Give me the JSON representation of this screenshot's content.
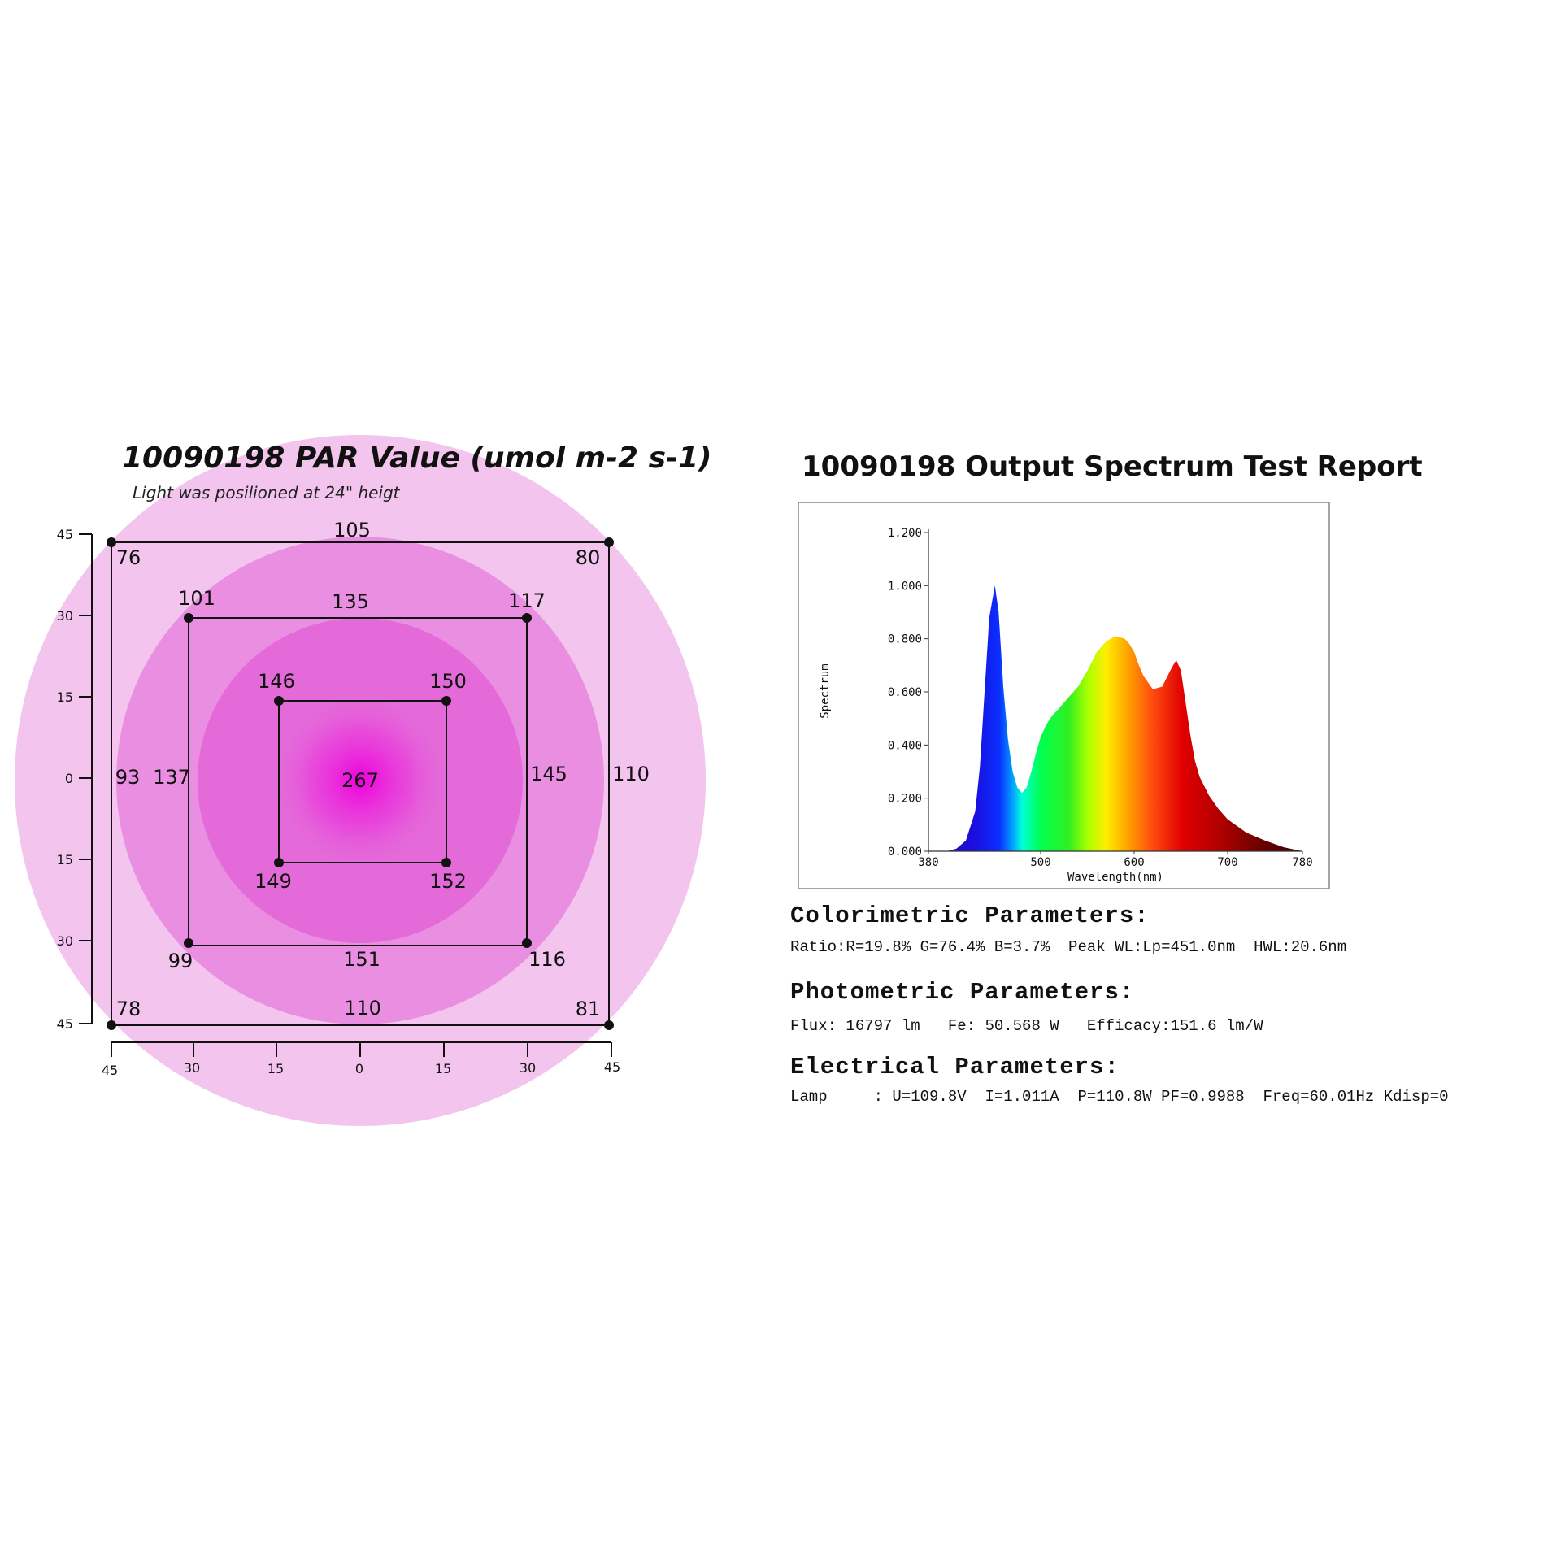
{
  "par_map": {
    "title": "10090198 PAR Value (umol m-2 s-1)",
    "subtitle": "Light was posilioned at 24\" heigt",
    "left_axis_ticks": [
      "45",
      "30",
      "15",
      "0",
      "15",
      "30",
      "45"
    ],
    "bottom_axis_ticks": [
      "45",
      "30",
      "15",
      "0",
      "15",
      "30",
      "45"
    ],
    "center_value": "267",
    "inner_square": {
      "corners": [
        "146",
        "150",
        "149",
        "152"
      ]
    },
    "middle_square": {
      "corners": [
        "101",
        "117",
        "99",
        "116"
      ],
      "top": "135",
      "bottom": "151",
      "left": "137",
      "right": "145"
    },
    "outer_square": {
      "corners": [
        "76",
        "80",
        "78",
        "81"
      ],
      "top": "105",
      "bottom": "110",
      "left": "93",
      "right": "110"
    },
    "colors": {
      "outer": "#f2c4ee",
      "middle": "#e98ee0",
      "inner": "#e46ad9",
      "center": "#ee00dd"
    }
  },
  "spectrum": {
    "title": "10090198 Output Spectrum Test Report",
    "colorimetric_header": "Colorimetric Parameters:",
    "colorimetric_line": "Ratio:R=19.8% G=76.4% B=3.7%  Peak WL:Lp=451.0nm  HWL:20.6nm",
    "photometric_header": "Photometric Parameters:",
    "photometric_line": "Flux: 16797 lm   Fe: 50.568 W   Efficacy:151.6 lm/W",
    "electrical_header": "Electrical Parameters:",
    "electrical_line": "Lamp     : U=109.8V  I=1.011A  P=110.8W PF=0.9988  Freq=60.01Hz Kdisp=0"
  },
  "chart_data": [
    {
      "type": "heatmap",
      "title": "10090198 PAR Value (umol m-2 s-1)",
      "subtitle": "Light was posilioned at 24\" heigt",
      "x_ticks": [
        45,
        30,
        15,
        0,
        15,
        30,
        45
      ],
      "y_ticks": [
        45,
        30,
        15,
        0,
        15,
        30,
        45
      ],
      "points": [
        {
          "x": -45,
          "y": 45,
          "value": 76
        },
        {
          "x": 0,
          "y": 45,
          "value": 105
        },
        {
          "x": 45,
          "y": 45,
          "value": 80
        },
        {
          "x": -30,
          "y": 30,
          "value": 101
        },
        {
          "x": 0,
          "y": 30,
          "value": 135
        },
        {
          "x": 30,
          "y": 30,
          "value": 117
        },
        {
          "x": -15,
          "y": 15,
          "value": 146
        },
        {
          "x": 15,
          "y": 15,
          "value": 150
        },
        {
          "x": -45,
          "y": 0,
          "value": 93
        },
        {
          "x": -30,
          "y": 0,
          "value": 137
        },
        {
          "x": 0,
          "y": 0,
          "value": 267
        },
        {
          "x": 30,
          "y": 0,
          "value": 145
        },
        {
          "x": 45,
          "y": 0,
          "value": 110
        },
        {
          "x": -15,
          "y": -15,
          "value": 149
        },
        {
          "x": 15,
          "y": -15,
          "value": 152
        },
        {
          "x": -30,
          "y": -30,
          "value": 99
        },
        {
          "x": 0,
          "y": -30,
          "value": 151
        },
        {
          "x": 30,
          "y": -30,
          "value": 116
        },
        {
          "x": -45,
          "y": -45,
          "value": 78
        },
        {
          "x": 0,
          "y": -45,
          "value": 110
        },
        {
          "x": 45,
          "y": -45,
          "value": 81
        }
      ]
    },
    {
      "type": "area",
      "xlabel": "Wavelength(nm)",
      "ylabel": "Spectrum",
      "xlim": [
        380,
        780
      ],
      "ylim": [
        0,
        1.2
      ],
      "x_ticks": [
        380,
        500,
        600,
        700,
        780
      ],
      "x_tick_labels": [
        "380",
        "500",
        "600",
        "700",
        "780"
      ],
      "y_ticks": [
        0,
        0.2,
        0.4,
        0.6,
        0.8,
        1.0,
        1.2
      ],
      "y_tick_labels": [
        "0.000",
        "0.200",
        "0.400",
        "0.600",
        "0.800",
        "1.000",
        "1.200"
      ],
      "x": [
        380,
        400,
        410,
        420,
        430,
        435,
        440,
        445,
        451,
        455,
        460,
        465,
        470,
        475,
        480,
        485,
        490,
        495,
        500,
        505,
        510,
        520,
        530,
        540,
        550,
        560,
        570,
        580,
        590,
        595,
        600,
        605,
        610,
        620,
        630,
        640,
        645,
        650,
        655,
        660,
        665,
        670,
        680,
        690,
        700,
        720,
        740,
        760,
        780
      ],
      "values": [
        0,
        0,
        0.01,
        0.04,
        0.15,
        0.32,
        0.6,
        0.88,
        1.0,
        0.9,
        0.62,
        0.42,
        0.3,
        0.24,
        0.22,
        0.24,
        0.3,
        0.37,
        0.43,
        0.47,
        0.5,
        0.54,
        0.58,
        0.62,
        0.68,
        0.75,
        0.79,
        0.81,
        0.8,
        0.78,
        0.75,
        0.7,
        0.66,
        0.61,
        0.62,
        0.69,
        0.72,
        0.68,
        0.56,
        0.44,
        0.34,
        0.28,
        0.21,
        0.16,
        0.12,
        0.07,
        0.04,
        0.015,
        0
      ]
    }
  ]
}
